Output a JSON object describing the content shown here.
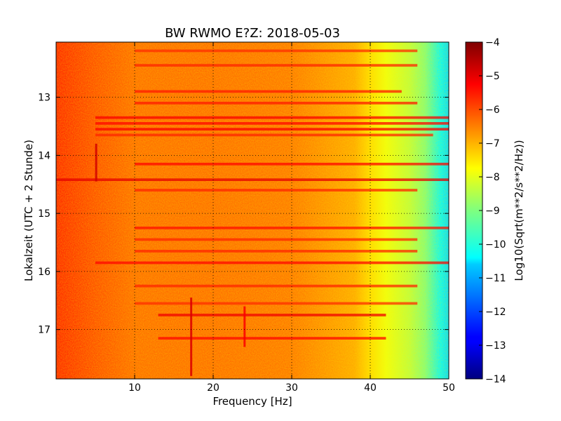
{
  "chart_data": {
    "type": "heatmap",
    "title": "BW RWMO E?Z: 2018-05-03",
    "xlabel": "Frequency [Hz]",
    "ylabel": "Lokalzeit (UTC + 2 Stunde)",
    "xlim": [
      0,
      50
    ],
    "ylim": [
      17.85,
      12.05
    ],
    "y_inverted": true,
    "x_ticks": [
      10,
      20,
      30,
      40,
      50
    ],
    "y_ticks": [
      13,
      14,
      15,
      16,
      17
    ],
    "grid": true,
    "grid_style": "dotted",
    "colormap": "jet",
    "colorbar": {
      "label": "Log10(Sqrt(m**2/s**2/Hz))",
      "range": [
        -14,
        -4
      ],
      "ticks": [
        -4,
        -5,
        -6,
        -7,
        -8,
        -9,
        -10,
        -11,
        -12,
        -13,
        -14
      ]
    },
    "spectrum_profile": [
      {
        "freq": 0,
        "value": -5.6
      },
      {
        "freq": 5,
        "value": -6.0
      },
      {
        "freq": 10,
        "value": -6.3
      },
      {
        "freq": 20,
        "value": -6.3
      },
      {
        "freq": 30,
        "value": -6.4
      },
      {
        "freq": 38,
        "value": -6.9
      },
      {
        "freq": 40,
        "value": -7.4
      },
      {
        "freq": 42,
        "value": -7.9
      },
      {
        "freq": 45,
        "value": -8.4
      },
      {
        "freq": 47,
        "value": -9.0
      },
      {
        "freq": 49,
        "value": -10.3
      },
      {
        "freq": 50,
        "value": -10.6
      }
    ],
    "bands": [
      {
        "time": 12.2,
        "fmin": 10,
        "fmax": 46,
        "value": -5.7
      },
      {
        "time": 12.45,
        "fmin": 10,
        "fmax": 46,
        "value": -5.6
      },
      {
        "time": 12.9,
        "fmin": 10,
        "fmax": 44,
        "value": -5.5
      },
      {
        "time": 13.1,
        "fmin": 10,
        "fmax": 46,
        "value": -5.5
      },
      {
        "time": 13.35,
        "fmin": 5,
        "fmax": 50,
        "value": -5.2
      },
      {
        "time": 13.45,
        "fmin": 5,
        "fmax": 50,
        "value": -5.3
      },
      {
        "time": 13.55,
        "fmin": 5,
        "fmax": 50,
        "value": -5.2
      },
      {
        "time": 13.65,
        "fmin": 5,
        "fmax": 48,
        "value": -5.6
      },
      {
        "time": 14.15,
        "fmin": 10,
        "fmax": 50,
        "value": -5.3
      },
      {
        "time": 14.42,
        "fmin": 0,
        "fmax": 50,
        "value": -5.0
      },
      {
        "time": 14.6,
        "fmin": 10,
        "fmax": 46,
        "value": -5.6
      },
      {
        "time": 15.25,
        "fmin": 10,
        "fmax": 50,
        "value": -5.4
      },
      {
        "time": 15.45,
        "fmin": 10,
        "fmax": 46,
        "value": -5.6
      },
      {
        "time": 15.65,
        "fmin": 10,
        "fmax": 46,
        "value": -5.6
      },
      {
        "time": 15.85,
        "fmin": 5,
        "fmax": 50,
        "value": -5.3
      },
      {
        "time": 16.25,
        "fmin": 10,
        "fmax": 46,
        "value": -5.6
      },
      {
        "time": 16.55,
        "fmin": 10,
        "fmax": 46,
        "value": -5.7
      },
      {
        "time": 16.75,
        "fmin": 13,
        "fmax": 42,
        "value": -5.1
      },
      {
        "time": 17.15,
        "fmin": 13,
        "fmax": 42,
        "value": -5.3
      }
    ],
    "events": [
      {
        "label": "",
        "freq": 5.1,
        "tmin": 13.8,
        "tmax": 14.45,
        "value": -4.8
      },
      {
        "label": "",
        "freq": 17.2,
        "tmin": 16.45,
        "tmax": 17.8,
        "value": -4.9
      },
      {
        "label": "",
        "freq": 24,
        "tmin": 16.6,
        "tmax": 17.3,
        "value": -5.2
      }
    ]
  }
}
